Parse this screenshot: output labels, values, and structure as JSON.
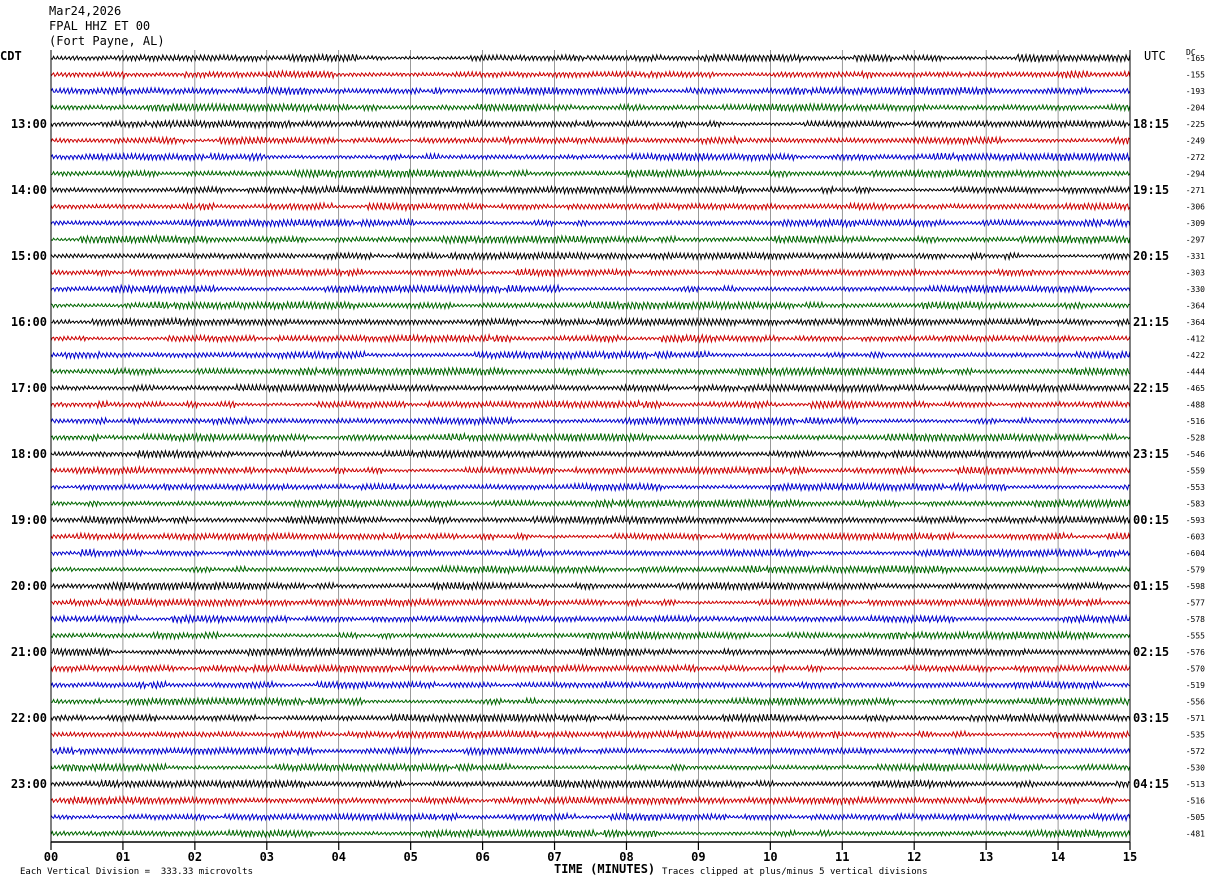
{
  "header": {
    "date": "Mar24,2026",
    "station": "FPAL HHZ ET 00",
    "location": "(Fort Payne, AL)"
  },
  "footer": {
    "scale_note": "Each Vertical Division =  333.33 microvolts",
    "clip_note": "Traces clipped at plus/minus 5 vertical divisions"
  },
  "chart_data": {
    "type": "line",
    "title": "",
    "xlabel": "TIME (MINUTES)",
    "xlim": [
      0,
      15
    ],
    "x_ticks": [
      "00",
      "01",
      "02",
      "03",
      "04",
      "05",
      "06",
      "07",
      "08",
      "09",
      "10",
      "11",
      "12",
      "13",
      "14",
      "15"
    ],
    "left_axis_label": "CDT",
    "right_axis_label": "UTC",
    "dc_label": "DC",
    "left_hour_labels": [
      "13:00",
      "14:00",
      "15:00",
      "16:00",
      "17:00",
      "18:00",
      "19:00",
      "20:00",
      "21:00",
      "22:00",
      "23:00"
    ],
    "right_hour_labels": [
      "18:15",
      "19:15",
      "20:15",
      "21:15",
      "22:15",
      "23:15",
      "00:15",
      "01:15",
      "02:15",
      "03:15",
      "04:15"
    ],
    "first_hour_label_trace": 4,
    "traces_per_hour": 4,
    "trace_colors": [
      "#000000",
      "#cc0000",
      "#0000cc",
      "#006600"
    ],
    "dc_offsets": [
      "-165",
      "-155",
      "-193",
      "-204",
      "-225",
      "-249",
      "-272",
      "-294",
      "-271",
      "-306",
      "-309",
      "-297",
      "-331",
      "-303",
      "-330",
      "-364",
      "-364",
      "-412",
      "-422",
      "-444",
      "-465",
      "-488",
      "-516",
      "-528",
      "-546",
      "-559",
      "-553",
      "-583",
      "-593",
      "-603",
      "-604",
      "-579",
      "-598",
      "-577",
      "-578",
      "-555",
      "-576",
      "-570",
      "-519",
      "-556",
      "-571",
      "-535",
      "-572",
      "-530",
      "-513",
      "-516",
      "-505",
      "-481"
    ]
  }
}
